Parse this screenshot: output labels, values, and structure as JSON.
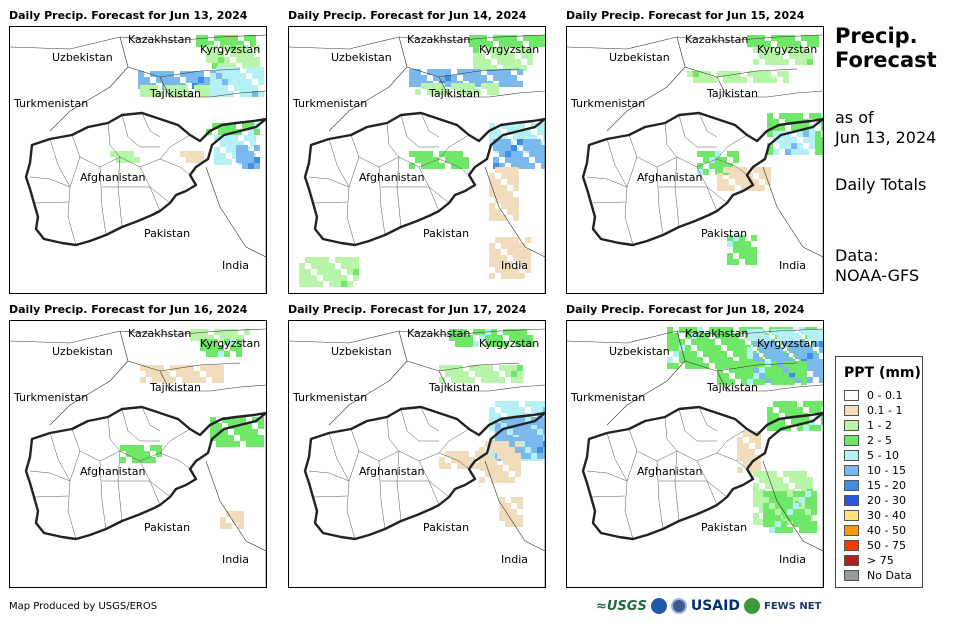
{
  "panels": [
    {
      "title": "Daily Precip. Forecast for Jun 13, 2024"
    },
    {
      "title": "Daily Precip. Forecast for Jun 14, 2024"
    },
    {
      "title": "Daily Precip. Forecast for Jun 15, 2024"
    },
    {
      "title": "Daily Precip. Forecast for Jun 16, 2024"
    },
    {
      "title": "Daily Precip. Forecast for Jun 17, 2024"
    },
    {
      "title": "Daily Precip. Forecast for Jun 18, 2024"
    }
  ],
  "map_labels": {
    "kazakhstan": "Kazakhstan",
    "uzbekistan": "Uzbekistan",
    "kyrgyzstan": "Kyrgyzstan",
    "tajikistan": "Tajikistan",
    "turkmenistan": "Turkmenistan",
    "afghanistan": "Afghanistan",
    "pakistan": "Pakistan",
    "india": "India"
  },
  "side": {
    "title_line1": "Precip.",
    "title_line2": "Forecast",
    "asof_line1": "as of",
    "asof_line2": "Jun 13, 2024",
    "totals": "Daily Totals",
    "data_line1": "Data:",
    "data_line2": "NOAA-GFS"
  },
  "legend": {
    "title": "PPT (mm)",
    "items": [
      {
        "label": "0 - 0.1",
        "color": "#ffffff"
      },
      {
        "label": "0.1 - 1",
        "color": "#f1dcbc"
      },
      {
        "label": "1 - 2",
        "color": "#b8f5a8"
      },
      {
        "label": "2 - 5",
        "color": "#6fe86a"
      },
      {
        "label": "5 - 10",
        "color": "#b5f0f5"
      },
      {
        "label": "10 - 15",
        "color": "#7bb8ee"
      },
      {
        "label": "15 - 20",
        "color": "#3f8ee6"
      },
      {
        "label": "20 - 30",
        "color": "#2756d8"
      },
      {
        "label": "30 - 40",
        "color": "#ffe27a"
      },
      {
        "label": "40 - 50",
        "color": "#f79b00"
      },
      {
        "label": "50 - 75",
        "color": "#ef3c00"
      },
      {
        "label": "> 75",
        "color": "#b0201c"
      },
      {
        "label": "No Data",
        "color": "#999999"
      }
    ]
  },
  "footer": {
    "credit": "Map Produced by USGS/EROS",
    "logo_usgs": "≈USGS",
    "logo_usaid": "USAID",
    "logo_fews": "FEWS NET"
  }
}
